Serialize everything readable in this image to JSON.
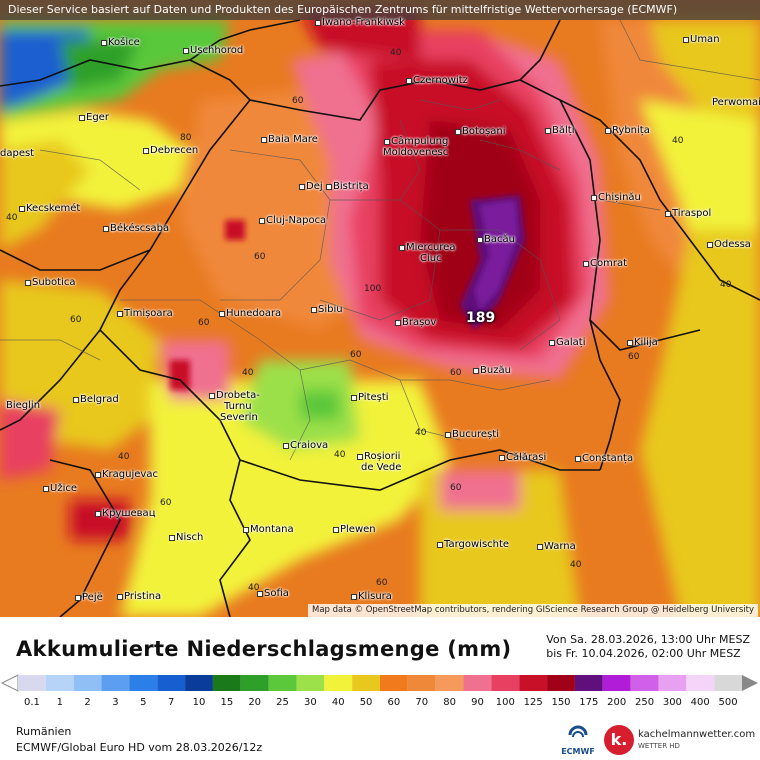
{
  "banner": "Dieser Service basiert auf Daten und Produkten des Europäischen Zentrums für mittelfristige Wettervorhersage (ECMWF)",
  "attribution": "Map data © OpenStreetMap contributors, rendering GIScience Research Group @ Heidelberg University",
  "title": "Akkumulierte Niederschlagsmenge (mm)",
  "period_from": "Von Sa. 28.03.2026, 13:00 Uhr MESZ",
  "period_to": "bis Fr. 10.04.2026, 02:00 Uhr MESZ",
  "region": "Rumänien",
  "model": "ECMWF/Global Euro HD vom  28.03.2026/12z",
  "ecmwf_label": "ECMWF",
  "kmw_name": "kachelmannwetter.com",
  "kmw_sub": "WETTER HD",
  "kmw_logo": "k.",
  "max_value": "189",
  "legend": {
    "ticks": [
      "0.1",
      "1",
      "2",
      "3",
      "5",
      "7",
      "10",
      "15",
      "20",
      "25",
      "30",
      "40",
      "50",
      "60",
      "70",
      "80",
      "90",
      "100",
      "125",
      "150",
      "175",
      "200",
      "250",
      "300",
      "400",
      "500"
    ],
    "colors": [
      "#d8d8ee",
      "#b6d4f7",
      "#8fbff5",
      "#5c9ff0",
      "#2d7fe8",
      "#155fd0",
      "#0a3c9a",
      "#1a7a1a",
      "#2ea02a",
      "#5ac83a",
      "#9ce04a",
      "#f2f23a",
      "#e8c81c",
      "#f07a1c",
      "#f0883a",
      "#f59a5a",
      "#f07090",
      "#e84060",
      "#c81028",
      "#a00018",
      "#60107c",
      "#b01cd8",
      "#d060e8",
      "#e8a0f0",
      "#f4d4f8",
      "#d8d8d8"
    ]
  },
  "cities": [
    {
      "name": "Iwano-Frankiwsk"
    },
    {
      "name": "Košice"
    },
    {
      "name": "Uschhorod"
    },
    {
      "name": "Uman"
    },
    {
      "name": "Czernowitz"
    },
    {
      "name": "Eger"
    },
    {
      "name": "Perwomai"
    },
    {
      "name": "Baia Mare"
    },
    {
      "name": "Botoșani"
    },
    {
      "name": "Bălți"
    },
    {
      "name": "Rybnița"
    },
    {
      "name": "Câmpulung"
    },
    {
      "name": "Moldovenesc"
    },
    {
      "name": "dapest"
    },
    {
      "name": "Debrecen"
    },
    {
      "name": "Dej"
    },
    {
      "name": "Bistrița"
    },
    {
      "name": "Chișinău"
    },
    {
      "name": "Kecskemét"
    },
    {
      "name": "Tiraspol"
    },
    {
      "name": "Cluj-Napoca"
    },
    {
      "name": "Békéscsaba"
    },
    {
      "name": "Bacău"
    },
    {
      "name": "Odessa"
    },
    {
      "name": "Miercurea"
    },
    {
      "name": "Ciuc"
    },
    {
      "name": "Comrat"
    },
    {
      "name": "Subotica"
    },
    {
      "name": "Timișoara"
    },
    {
      "name": "Hunedoara"
    },
    {
      "name": "Sibiu"
    },
    {
      "name": "Brașov"
    },
    {
      "name": "Galați"
    },
    {
      "name": "Kilija"
    },
    {
      "name": "Buzău"
    },
    {
      "name": "Bieglin"
    },
    {
      "name": "Belgrad"
    },
    {
      "name": "Drobeta-"
    },
    {
      "name": "Turnu"
    },
    {
      "name": "Severin"
    },
    {
      "name": "Pitești"
    },
    {
      "name": "Craiova"
    },
    {
      "name": "Roșiorii"
    },
    {
      "name": "de Vede"
    },
    {
      "name": "București"
    },
    {
      "name": "Călărași"
    },
    {
      "name": "Constanța"
    },
    {
      "name": "Kragujevac"
    },
    {
      "name": "Užice"
    },
    {
      "name": "Крушевац"
    },
    {
      "name": "Nisch"
    },
    {
      "name": "Montana"
    },
    {
      "name": "Plewen"
    },
    {
      "name": "Targowischte"
    },
    {
      "name": "Warna"
    },
    {
      "name": "Pejë"
    },
    {
      "name": "Pristina"
    },
    {
      "name": "Sofia"
    },
    {
      "name": "Klisura"
    }
  ],
  "contours": [
    "40",
    "60",
    "80",
    "40",
    "60",
    "40",
    "60",
    "40",
    "60",
    "100",
    "60",
    "40",
    "40",
    "60",
    "40",
    "60",
    "60",
    "40",
    "40",
    "60",
    "40",
    "60"
  ]
}
